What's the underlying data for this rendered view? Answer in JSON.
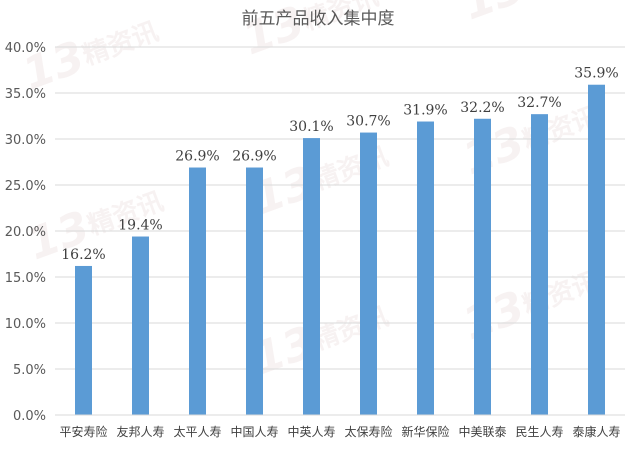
{
  "chart_data": {
    "type": "bar",
    "title": "前五产品收入集中度",
    "xlabel": "",
    "ylabel": "",
    "categories": [
      "平安寿险",
      "友邦人寿",
      "太平人寿",
      "中国人寿",
      "中英人寿",
      "太保寿险",
      "新华保险",
      "中美联泰",
      "民生人寿",
      "泰康人寿"
    ],
    "values": [
      16.2,
      19.4,
      26.9,
      26.9,
      30.1,
      30.7,
      31.9,
      32.2,
      32.7,
      35.9
    ],
    "data_labels": [
      "16.2%",
      "19.4%",
      "26.9%",
      "26.9%",
      "30.1%",
      "30.7%",
      "31.9%",
      "32.2%",
      "32.7%",
      "35.9%"
    ],
    "ylim": [
      0,
      40
    ],
    "yticks": [
      0,
      5,
      10,
      15,
      20,
      25,
      30,
      35,
      40
    ],
    "ytick_labels": [
      "0.0%",
      "5.0%",
      "10.0%",
      "15.0%",
      "20.0%",
      "25.0%",
      "30.0%",
      "35.0%",
      "40.0%"
    ],
    "grid": true,
    "legend": "none",
    "bar_color": "#5b9bd5",
    "gridline_color": "#d9d9d9"
  },
  "watermark": {
    "number": "13",
    "text": "精资讯"
  }
}
